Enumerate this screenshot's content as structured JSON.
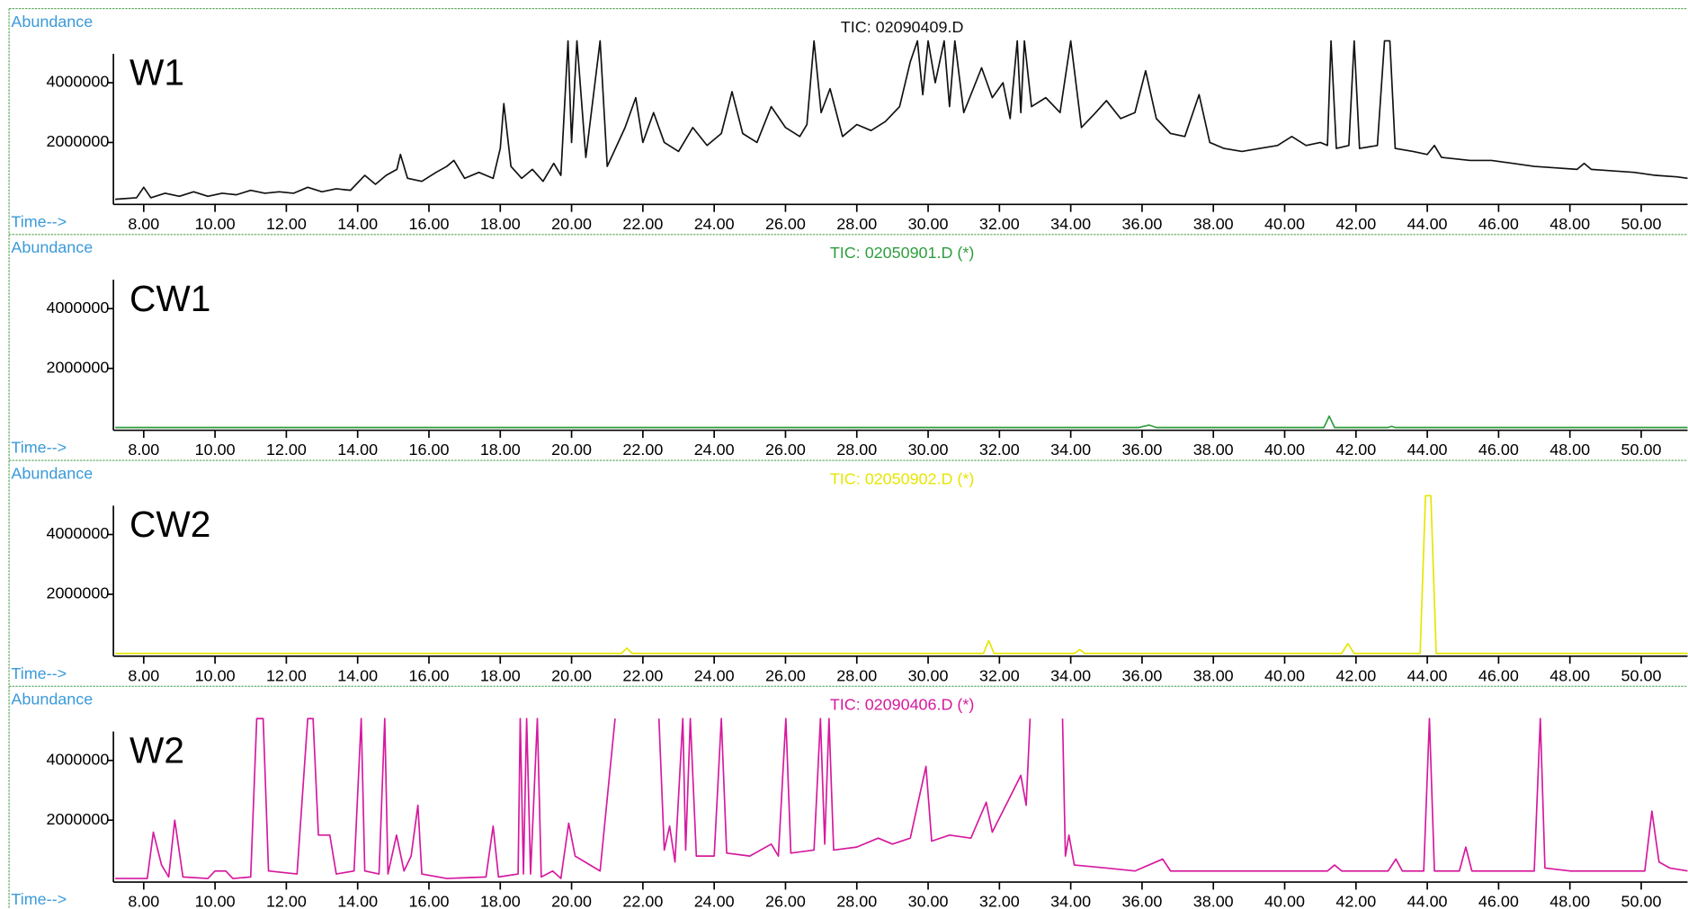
{
  "chart_data": [
    {
      "type": "line",
      "title": "TIC: 02090409.D",
      "label": "W1",
      "xlabel": "Time-->",
      "ylabel": "Abundance",
      "xlim": [
        7.15,
        51.3
      ],
      "ylim": [
        0,
        5400000
      ],
      "xticks": [
        {
          "value": 8,
          "label": "8.00"
        },
        {
          "value": 10,
          "label": "10.00"
        },
        {
          "value": 12,
          "label": "12.00"
        },
        {
          "value": 14,
          "label": "14.00"
        },
        {
          "value": 16,
          "label": "16.00"
        },
        {
          "value": 18,
          "label": "18.00"
        },
        {
          "value": 20,
          "label": "20.00"
        },
        {
          "value": 22,
          "label": "22.00"
        },
        {
          "value": 24,
          "label": "24.00"
        },
        {
          "value": 26,
          "label": "26.00"
        },
        {
          "value": 28,
          "label": "28.00"
        },
        {
          "value": 30,
          "label": "30.00"
        },
        {
          "value": 32,
          "label": "32.00"
        },
        {
          "value": 34,
          "label": "34.00"
        },
        {
          "value": 36,
          "label": "36.00"
        },
        {
          "value": 38,
          "label": "38.00"
        },
        {
          "value": 40,
          "label": "40.00"
        },
        {
          "value": 42,
          "label": "42.00"
        },
        {
          "value": 44,
          "label": "44.00"
        },
        {
          "value": 46,
          "label": "46.00"
        },
        {
          "value": 48,
          "label": "48.00"
        },
        {
          "value": 50,
          "label": "50.00"
        }
      ],
      "yticks": [
        2000000,
        4000000
      ],
      "x": [
        7.2,
        7.8,
        8.0,
        8.2,
        8.6,
        9.0,
        9.4,
        9.8,
        10.2,
        10.6,
        11.0,
        11.4,
        11.8,
        12.2,
        12.6,
        13.0,
        13.4,
        13.8,
        14.2,
        14.5,
        14.8,
        15.1,
        15.2,
        15.4,
        15.8,
        16.2,
        16.5,
        16.7,
        17.0,
        17.4,
        17.8,
        18.0,
        18.1,
        18.3,
        18.6,
        18.9,
        19.2,
        19.5,
        19.7,
        19.9,
        20.0,
        20.15,
        20.4,
        20.8,
        21.0,
        21.5,
        21.8,
        22.0,
        22.3,
        22.6,
        23.0,
        23.4,
        23.8,
        24.2,
        24.5,
        24.8,
        25.2,
        25.6,
        26.0,
        26.4,
        26.6,
        26.8,
        27.0,
        27.25,
        27.6,
        28.0,
        28.4,
        28.8,
        29.2,
        29.5,
        29.7,
        29.85,
        30.0,
        30.2,
        30.45,
        30.6,
        30.75,
        31.0,
        31.5,
        31.8,
        32.1,
        32.3,
        32.5,
        32.6,
        32.7,
        32.9,
        33.3,
        33.7,
        34.0,
        34.3,
        34.7,
        35.0,
        35.4,
        35.8,
        36.1,
        36.4,
        36.8,
        37.2,
        37.6,
        37.9,
        38.3,
        38.8,
        39.3,
        39.8,
        40.2,
        40.6,
        41.0,
        41.2,
        41.3,
        41.45,
        41.8,
        41.95,
        42.1,
        42.6,
        42.8,
        42.95,
        43.1,
        43.6,
        44.0,
        44.2,
        44.4,
        45.2,
        45.8,
        46.4,
        47.0,
        47.6,
        48.2,
        48.4,
        48.6,
        49.2,
        49.8,
        50.4,
        51.0,
        51.3
      ],
      "series": [
        {
          "color": "#111111",
          "values": [
            100000,
            150000,
            500000,
            150000,
            300000,
            200000,
            350000,
            200000,
            300000,
            250000,
            400000,
            300000,
            350000,
            300000,
            500000,
            350000,
            450000,
            400000,
            900000,
            600000,
            900000,
            1100000,
            1600000,
            800000,
            700000,
            1000000,
            1200000,
            1400000,
            800000,
            1000000,
            800000,
            1800000,
            3300000,
            1200000,
            800000,
            1100000,
            700000,
            1300000,
            900000,
            5400000,
            2000000,
            5400000,
            1500000,
            5400000,
            1200000,
            2500000,
            3500000,
            2000000,
            3000000,
            2000000,
            1700000,
            2500000,
            1900000,
            2300000,
            3700000,
            2300000,
            2000000,
            3200000,
            2500000,
            2200000,
            2600000,
            5400000,
            3000000,
            3800000,
            2200000,
            2600000,
            2400000,
            2700000,
            3200000,
            4700000,
            5400000,
            3600000,
            5400000,
            4000000,
            5400000,
            3200000,
            5400000,
            3000000,
            4500000,
            3500000,
            4000000,
            2800000,
            5400000,
            3000000,
            5400000,
            3200000,
            3500000,
            3000000,
            5400000,
            2500000,
            3000000,
            3400000,
            2800000,
            3000000,
            4400000,
            2800000,
            2300000,
            2200000,
            3600000,
            2000000,
            1800000,
            1700000,
            1800000,
            1900000,
            2200000,
            1900000,
            2000000,
            1900000,
            5400000,
            1800000,
            1900000,
            5400000,
            1800000,
            1900000,
            5400000,
            5400000,
            1800000,
            1700000,
            1600000,
            1900000,
            1500000,
            1400000,
            1400000,
            1300000,
            1200000,
            1150000,
            1100000,
            1300000,
            1100000,
            1050000,
            1000000,
            900000,
            850000,
            800000
          ]
        }
      ]
    },
    {
      "type": "line",
      "title": "TIC: 02050901.D (*)",
      "label": "CW1",
      "xlabel": "Time-->",
      "ylabel": "Abundance",
      "xlim": [
        7.15,
        51.3
      ],
      "ylim": [
        0,
        5400000
      ],
      "xticks": [
        {
          "value": 8,
          "label": "8.00"
        },
        {
          "value": 10,
          "label": "10.00"
        },
        {
          "value": 12,
          "label": "12.00"
        },
        {
          "value": 14,
          "label": "14.00"
        },
        {
          "value": 16,
          "label": "16.00"
        },
        {
          "value": 18,
          "label": "18.00"
        },
        {
          "value": 20,
          "label": "20.00"
        },
        {
          "value": 22,
          "label": "22.00"
        },
        {
          "value": 24,
          "label": "24.00"
        },
        {
          "value": 26,
          "label": "26.00"
        },
        {
          "value": 28,
          "label": "28.00"
        },
        {
          "value": 30,
          "label": "30.00"
        },
        {
          "value": 32,
          "label": "32.00"
        },
        {
          "value": 34,
          "label": "34.00"
        },
        {
          "value": 36,
          "label": "36.00"
        },
        {
          "value": 38,
          "label": "38.00"
        },
        {
          "value": 40,
          "label": "40.00"
        },
        {
          "value": 42,
          "label": "42.00"
        },
        {
          "value": 44,
          "label": "44.00"
        },
        {
          "value": 46,
          "label": "46.00"
        },
        {
          "value": 48,
          "label": "48.00"
        },
        {
          "value": 50,
          "label": "50.00"
        }
      ],
      "yticks": [
        2000000,
        4000000
      ],
      "x": [
        7.2,
        35.9,
        36.2,
        36.4,
        41.1,
        41.25,
        41.4,
        42.9,
        43.0,
        43.1,
        51.3
      ],
      "series": [
        {
          "color": "#2e9e3e",
          "values": [
            20000,
            20000,
            100000,
            20000,
            20000,
            400000,
            20000,
            20000,
            60000,
            20000,
            20000
          ]
        }
      ]
    },
    {
      "type": "line",
      "title": "TIC: 02050902.D (*)",
      "label": "CW2",
      "xlabel": "Time-->",
      "ylabel": "Abundance",
      "xlim": [
        7.15,
        51.3
      ],
      "ylim": [
        0,
        5400000
      ],
      "xticks": [
        {
          "value": 8,
          "label": "8.00"
        },
        {
          "value": 10,
          "label": "10.00"
        },
        {
          "value": 12,
          "label": "12.00"
        },
        {
          "value": 14,
          "label": "14.00"
        },
        {
          "value": 16,
          "label": "16.00"
        },
        {
          "value": 18,
          "label": "18.00"
        },
        {
          "value": 20,
          "label": "20.00"
        },
        {
          "value": 22,
          "label": "22.00"
        },
        {
          "value": 24,
          "label": "24.00"
        },
        {
          "value": 26,
          "label": "26.00"
        },
        {
          "value": 28,
          "label": "28.00"
        },
        {
          "value": 30,
          "label": "30.00"
        },
        {
          "value": 32,
          "label": "32.00"
        },
        {
          "value": 34,
          "label": "34.00"
        },
        {
          "value": 36,
          "label": "36.00"
        },
        {
          "value": 38,
          "label": "38.00"
        },
        {
          "value": 40,
          "label": "40.00"
        },
        {
          "value": 42,
          "label": "42.00"
        },
        {
          "value": 44,
          "label": "44.00"
        },
        {
          "value": 46,
          "label": "46.00"
        },
        {
          "value": 48,
          "label": "48.00"
        },
        {
          "value": 50,
          "label": "50.00"
        }
      ],
      "yticks": [
        2000000,
        4000000
      ],
      "x": [
        7.2,
        21.4,
        21.55,
        21.7,
        31.55,
        31.7,
        31.85,
        34.1,
        34.25,
        34.4,
        41.6,
        41.77,
        41.95,
        43.8,
        43.95,
        44.1,
        44.25,
        51.3
      ],
      "series": [
        {
          "color": "#e6e600",
          "values": [
            20000,
            20000,
            200000,
            20000,
            20000,
            450000,
            20000,
            20000,
            150000,
            20000,
            20000,
            350000,
            20000,
            20000,
            5300000,
            5300000,
            20000,
            20000
          ]
        }
      ]
    },
    {
      "type": "line",
      "title": "TIC: 02090406.D (*)",
      "label": "W2",
      "xlabel": "Time-->",
      "ylabel": "Abundance",
      "xlim": [
        7.15,
        51.3
      ],
      "ylim": [
        0,
        5400000
      ],
      "xticks": [
        {
          "value": 8,
          "label": "8.00"
        },
        {
          "value": 10,
          "label": "10.00"
        },
        {
          "value": 12,
          "label": "12.00"
        },
        {
          "value": 14,
          "label": "14.00"
        },
        {
          "value": 16,
          "label": "16.00"
        },
        {
          "value": 18,
          "label": "18.00"
        },
        {
          "value": 20,
          "label": "20.00"
        },
        {
          "value": 22,
          "label": "22.00"
        },
        {
          "value": 24,
          "label": "24.00"
        },
        {
          "value": 26,
          "label": "26.00"
        },
        {
          "value": 28,
          "label": "28.00"
        },
        {
          "value": 30,
          "label": "30.00"
        },
        {
          "value": 32,
          "label": "32.00"
        },
        {
          "value": 34,
          "label": "34.00"
        },
        {
          "value": 36,
          "label": "36.00"
        },
        {
          "value": 38,
          "label": "38.00"
        },
        {
          "value": 40,
          "label": "40.00"
        },
        {
          "value": 42,
          "label": "42.00"
        },
        {
          "value": 44,
          "label": "44.00"
        },
        {
          "value": 46,
          "label": "46.00"
        },
        {
          "value": 48,
          "label": "48.00"
        },
        {
          "value": 50,
          "label": "50.00"
        }
      ],
      "yticks": [
        2000000,
        4000000
      ],
      "x": [
        7.2,
        8.1,
        8.27,
        8.5,
        8.7,
        8.87,
        9.1,
        9.8,
        10.0,
        10.3,
        10.5,
        11.0,
        11.17,
        11.35,
        11.5,
        12.3,
        12.6,
        12.75,
        12.9,
        13.22,
        13.4,
        13.9,
        14.1,
        14.2,
        14.6,
        14.76,
        14.85,
        15.09,
        15.3,
        15.5,
        15.69,
        15.8,
        16.5,
        17.6,
        17.8,
        17.95,
        18.5,
        18.56,
        18.65,
        18.74,
        18.85,
        19.04,
        19.15,
        19.47,
        19.7,
        19.92,
        20.1,
        20.8,
        21.22,
        21.3,
        22.45,
        22.6,
        22.75,
        22.9,
        23.12,
        23.2,
        23.33,
        23.5,
        24.0,
        24.2,
        24.35,
        25.0,
        25.6,
        25.8,
        26.01,
        26.15,
        26.8,
        26.98,
        27.1,
        27.22,
        27.35,
        28.0,
        28.6,
        29.0,
        29.5,
        29.94,
        30.1,
        30.6,
        31.2,
        31.63,
        31.8,
        32.35,
        32.6,
        32.75,
        32.86,
        32.9,
        33.77,
        33.85,
        33.95,
        34.1,
        35.0,
        35.8,
        36.58,
        36.8,
        38.0,
        39.5,
        41.2,
        41.4,
        41.6,
        42.9,
        43.12,
        43.3,
        43.9,
        44.06,
        44.2,
        44.9,
        45.08,
        45.25,
        47.0,
        47.17,
        47.3,
        48.0,
        50.1,
        50.3,
        50.5,
        50.8,
        51.3
      ],
      "series": [
        {
          "color": "#d6199e",
          "values": [
            50000,
            50000,
            1600000,
            500000,
            100000,
            2000000,
            100000,
            50000,
            300000,
            300000,
            50000,
            100000,
            5400000,
            5400000,
            300000,
            200000,
            5400000,
            5400000,
            1500000,
            1500000,
            200000,
            300000,
            5400000,
            300000,
            200000,
            5400000,
            200000,
            1500000,
            300000,
            800000,
            2500000,
            200000,
            50000,
            100000,
            1800000,
            100000,
            200000,
            5400000,
            200000,
            5400000,
            200000,
            5400000,
            100000,
            300000,
            50000,
            1900000,
            800000,
            300000,
            5400000,
            null,
            5400000,
            1000000,
            1800000,
            600000,
            5400000,
            1000000,
            5400000,
            800000,
            800000,
            5400000,
            900000,
            800000,
            1200000,
            800000,
            5400000,
            900000,
            1000000,
            5400000,
            1200000,
            5400000,
            1000000,
            1100000,
            1400000,
            1200000,
            1400000,
            3800000,
            1300000,
            1500000,
            1400000,
            2600000,
            1600000,
            2900000,
            3500000,
            2500000,
            5400000,
            null,
            5400000,
            800000,
            1500000,
            500000,
            400000,
            300000,
            700000,
            300000,
            300000,
            300000,
            300000,
            500000,
            300000,
            300000,
            700000,
            300000,
            300000,
            5400000,
            300000,
            300000,
            1100000,
            300000,
            300000,
            5400000,
            400000,
            300000,
            300000,
            2300000,
            600000,
            400000,
            300000
          ]
        }
      ]
    }
  ]
}
